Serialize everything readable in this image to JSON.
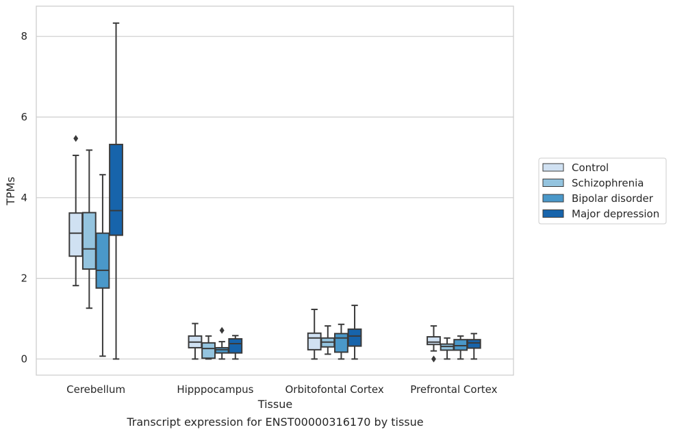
{
  "chart_data": {
    "type": "box",
    "title": "Transcript expression for ENST00000316170 by tissue",
    "xlabel": "Tissue",
    "ylabel": "TPMs",
    "ylim": [
      -0.4,
      8.75
    ],
    "yticks": [
      0,
      2,
      4,
      6,
      8
    ],
    "grid": true,
    "legend_position": "right",
    "categories": [
      "Cerebellum",
      "Hipppocampus",
      "Orbitofontal Cortex",
      "Prefrontal Cortex"
    ],
    "series": [
      {
        "name": "Control",
        "color": "#d0e1f2",
        "boxes": [
          {
            "whislo": 1.82,
            "q1": 2.55,
            "med": 3.12,
            "q3": 3.62,
            "whishi": 5.05,
            "fliers": [
              5.47
            ]
          },
          {
            "whislo": 0.0,
            "q1": 0.28,
            "med": 0.42,
            "q3": 0.57,
            "whishi": 0.88,
            "fliers": []
          },
          {
            "whislo": 0.0,
            "q1": 0.23,
            "med": 0.52,
            "q3": 0.64,
            "whishi": 1.23,
            "fliers": []
          },
          {
            "whislo": 0.2,
            "q1": 0.36,
            "med": 0.42,
            "q3": 0.55,
            "whishi": 0.82,
            "fliers": [
              0.0
            ]
          }
        ]
      },
      {
        "name": "Schizophrenia",
        "color": "#94c4df",
        "boxes": [
          {
            "whislo": 1.26,
            "q1": 2.23,
            "med": 2.73,
            "q3": 3.63,
            "whishi": 5.18,
            "fliers": []
          },
          {
            "whislo": 0.0,
            "q1": 0.02,
            "med": 0.26,
            "q3": 0.4,
            "whishi": 0.57,
            "fliers": []
          },
          {
            "whislo": 0.12,
            "q1": 0.3,
            "med": 0.42,
            "q3": 0.52,
            "whishi": 0.82,
            "fliers": []
          },
          {
            "whislo": 0.0,
            "q1": 0.22,
            "med": 0.31,
            "q3": 0.37,
            "whishi": 0.52,
            "fliers": []
          }
        ]
      },
      {
        "name": "Bipolar disorder",
        "color": "#4a98c9",
        "boxes": [
          {
            "whislo": 0.07,
            "q1": 1.76,
            "med": 2.2,
            "q3": 3.12,
            "whishi": 4.57,
            "fliers": []
          },
          {
            "whislo": 0.0,
            "q1": 0.15,
            "med": 0.23,
            "q3": 0.28,
            "whishi": 0.43,
            "fliers": [
              0.71
            ]
          },
          {
            "whislo": 0.0,
            "q1": 0.17,
            "med": 0.52,
            "q3": 0.63,
            "whishi": 0.86,
            "fliers": []
          },
          {
            "whislo": 0.0,
            "q1": 0.22,
            "med": 0.33,
            "q3": 0.48,
            "whishi": 0.57,
            "fliers": []
          }
        ]
      },
      {
        "name": "Major depression",
        "color": "#1764ab",
        "boxes": [
          {
            "whislo": 0.0,
            "q1": 3.07,
            "med": 3.68,
            "q3": 5.32,
            "whishi": 8.33,
            "fliers": []
          },
          {
            "whislo": 0.0,
            "q1": 0.15,
            "med": 0.38,
            "q3": 0.5,
            "whishi": 0.58,
            "fliers": []
          },
          {
            "whislo": 0.0,
            "q1": 0.32,
            "med": 0.57,
            "q3": 0.74,
            "whishi": 1.33,
            "fliers": []
          },
          {
            "whislo": 0.0,
            "q1": 0.27,
            "med": 0.4,
            "q3": 0.48,
            "whishi": 0.63,
            "fliers": []
          }
        ]
      }
    ]
  }
}
